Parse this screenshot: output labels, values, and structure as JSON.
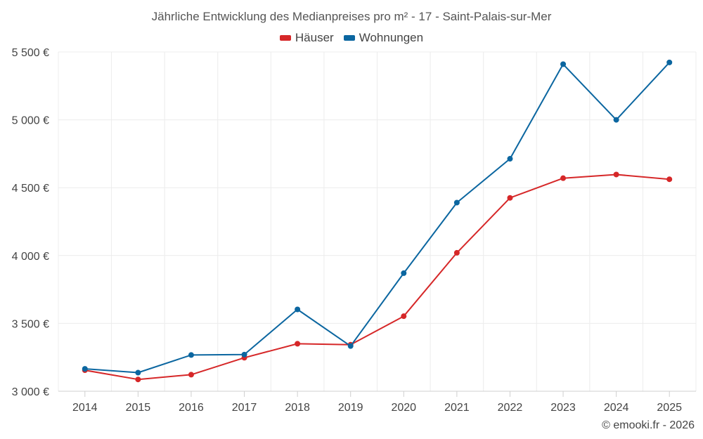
{
  "chart_data": {
    "type": "line",
    "title": "Jährliche Entwicklung des Medianpreises pro m² - 17 - Saint-Palais-sur-Mer",
    "categories": [
      "2014",
      "2015",
      "2016",
      "2017",
      "2018",
      "2019",
      "2020",
      "2021",
      "2022",
      "2023",
      "2024",
      "2025"
    ],
    "series": [
      {
        "name": "Häuser",
        "color": "#d62728",
        "values": [
          3155,
          3087,
          3122,
          3247,
          3350,
          3343,
          3553,
          4020,
          4425,
          4570,
          4597,
          4562
        ]
      },
      {
        "name": "Wohnungen",
        "color": "#0b66a0",
        "values": [
          3165,
          3137,
          3267,
          3270,
          3603,
          3333,
          3870,
          4390,
          4713,
          5410,
          5000,
          5423
        ]
      }
    ],
    "y_ticks": [
      3000,
      3500,
      4000,
      4500,
      5000,
      5500
    ],
    "y_tick_labels": [
      "3 000 €",
      "3 500 €",
      "4 000 €",
      "4 500 €",
      "5 000 €",
      "5 500 €"
    ],
    "ylim": [
      3000,
      5500
    ],
    "xlabel": "",
    "ylabel": "",
    "legend_position": "top-center",
    "grid": true
  },
  "credit": "© emooki.fr - 2026"
}
